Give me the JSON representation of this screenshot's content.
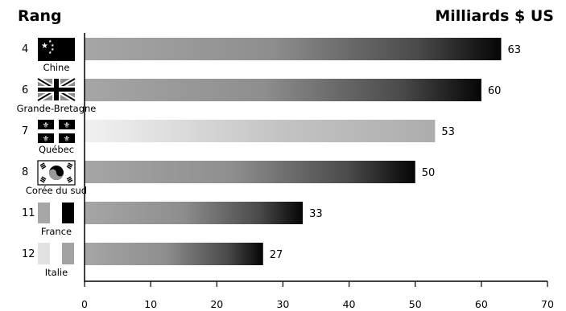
{
  "header": {
    "left_title": "Rang",
    "right_title": "Milliards $ US"
  },
  "chart_data": {
    "type": "bar",
    "orientation": "horizontal",
    "title": "",
    "xlabel": "",
    "ylabel": "",
    "categories": [
      "Chine",
      "Grande-Bretagne",
      "Québec",
      "Corée du sud",
      "France",
      "Italie"
    ],
    "ranks": [
      "4",
      "6",
      "7",
      "8",
      "11",
      "12"
    ],
    "values": [
      63,
      60,
      53,
      50,
      33,
      27
    ],
    "xlim": [
      0,
      70
    ],
    "xticks": [
      "0",
      "10",
      "20",
      "30",
      "40",
      "50",
      "60",
      "70"
    ],
    "grid": false,
    "flag_icons": [
      "china-flag-icon",
      "uk-flag-icon",
      "quebec-flag-icon",
      "south-korea-flag-icon",
      "france-flag-icon",
      "italy-flag-icon"
    ],
    "bar_shading": [
      "gradient-gray-to-black",
      "gradient-gray-to-black",
      "gradient-light-to-gray",
      "gradient-gray-to-black",
      "gradient-gray-to-black",
      "gradient-gray-to-black"
    ]
  }
}
